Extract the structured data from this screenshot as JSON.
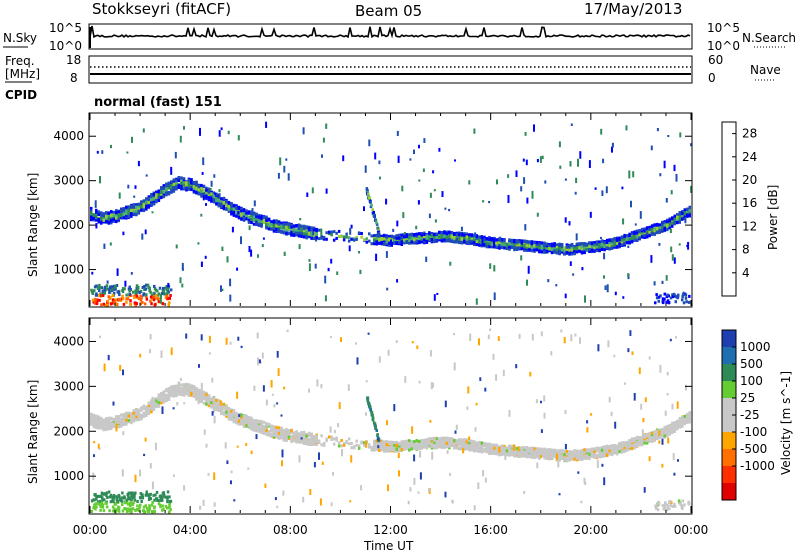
{
  "header": {
    "station": "Stokkseyri (fitACF)",
    "beam": "Beam 05",
    "date": "17/May/2013"
  },
  "noise_panel": {
    "left_label": "N.Sky",
    "right_label": "N.Search",
    "left_ticks": [
      "10^5",
      "10^0"
    ],
    "right_ticks": [
      "10^5",
      "10^0"
    ]
  },
  "freq_panel": {
    "left_label_line1": "Freq.",
    "left_label_line2": "[MHz]",
    "left_ticks": [
      "18",
      "8"
    ],
    "right_label": "Nave",
    "right_ticks": [
      "60",
      "0"
    ],
    "cpid_label": "CPID",
    "mode_text": "normal (fast) 151"
  },
  "x_axis": {
    "label": "Time UT",
    "ticks": [
      "00:00",
      "04:00",
      "08:00",
      "12:00",
      "16:00",
      "20:00",
      "00:00"
    ]
  },
  "chart_data": [
    {
      "type": "heatmap",
      "title": "Power",
      "ylabel": "Slant Range [km]",
      "yticks": [
        "4000",
        "3000",
        "2000",
        "1000"
      ],
      "ylim": [
        180,
        4500
      ],
      "xlim": [
        0,
        24
      ],
      "colorbar": {
        "label": "Power [dB]",
        "ticks": [
          "28",
          "24",
          "20",
          "16",
          "12",
          "8",
          "4"
        ],
        "range": [
          0,
          30
        ],
        "colors": [
          "#0000ff",
          "#1f4fb4",
          "#2e8b57",
          "#4caf7a",
          "#9acd32",
          "#ffd700",
          "#ff9900",
          "#ff6000",
          "#ff0000"
        ]
      },
      "band_track": {
        "time_h": [
          0.0,
          0.5,
          1.0,
          1.5,
          2.0,
          2.5,
          3.0,
          3.5,
          4.0,
          4.5,
          5.0,
          5.5,
          6.0,
          6.5,
          7.0,
          7.5,
          8.0,
          8.5,
          9.0,
          11.0,
          12.0,
          13.0,
          14.0,
          15.0,
          16.0,
          17.0,
          18.0,
          19.0,
          20.0,
          21.0,
          22.0,
          23.0,
          24.0
        ],
        "range_km": [
          2250,
          2150,
          2200,
          2300,
          2400,
          2600,
          2800,
          2950,
          2900,
          2750,
          2600,
          2400,
          2250,
          2150,
          2050,
          1950,
          1900,
          1850,
          1800,
          1700,
          1650,
          1700,
          1750,
          1700,
          1600,
          1550,
          1500,
          1450,
          1500,
          1600,
          1800,
          2000,
          2350
        ]
      }
    },
    {
      "type": "heatmap",
      "title": "Velocity",
      "ylabel": "Slant Range [km]",
      "yticks": [
        "4000",
        "3000",
        "2000",
        "1000"
      ],
      "ylim": [
        180,
        4500
      ],
      "xlim": [
        0,
        24
      ],
      "colorbar": {
        "label": "Velocity [m s^-1]",
        "ticks": [
          "1000",
          "500",
          "100",
          "25",
          "-25",
          "-100",
          "-500",
          "-1000"
        ],
        "colors": [
          "#1f3fb0",
          "#1f6fb0",
          "#2e8b57",
          "#66cc33",
          "#c8c8c8",
          "#c8c8c8",
          "#ffa500",
          "#ff7000",
          "#ff3000",
          "#e00000"
        ]
      }
    }
  ]
}
